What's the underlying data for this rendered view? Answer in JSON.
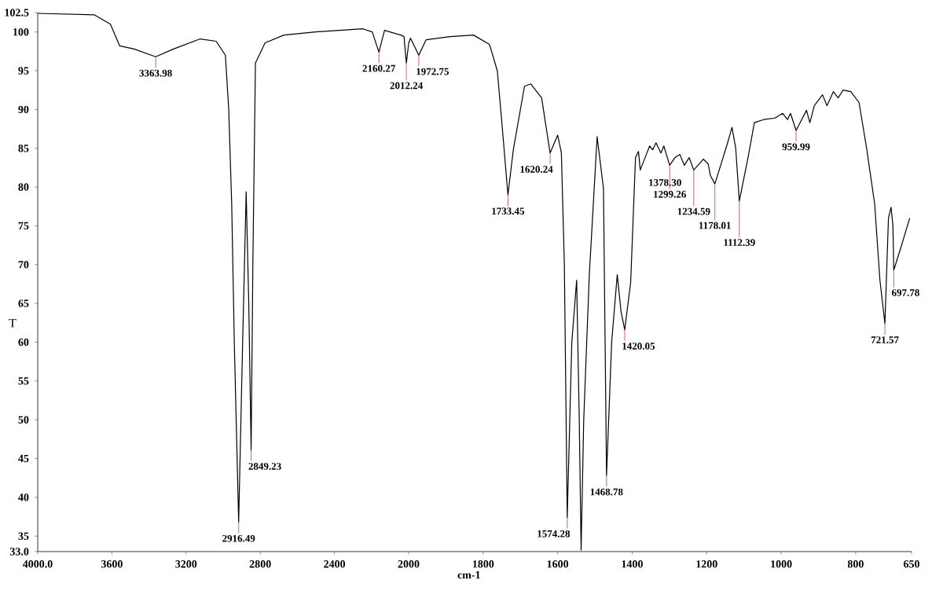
{
  "chart_data": [
    {
      "type": "line",
      "ylabel": "T",
      "xlim": [
        4000,
        2000
      ],
      "ylim": [
        33,
        102.5
      ],
      "xticks": [
        {
          "value": 4000,
          "label": "4000.0"
        },
        3600,
        3200,
        2800,
        2400,
        2000
      ],
      "yticks": [
        {
          "value": 33,
          "label": "33.0"
        },
        35,
        40,
        45,
        50,
        55,
        60,
        65,
        70,
        75,
        80,
        85,
        90,
        95,
        100,
        102.5
      ],
      "series": [
        {
          "color": "#000000",
          "x": [
            4000,
            3694,
            3608,
            3558,
            3480,
            3363.98,
            3268,
            3124,
            3038,
            2988,
            2970,
            2954,
            2940,
            2916.49,
            2895,
            2876,
            2862,
            2849.23,
            2840,
            2826,
            2774,
            2672,
            2502,
            2246,
            2196,
            2160.27,
            2130,
            2042,
            2025,
            2012.24,
            2000
          ],
          "values": [
            102.4,
            102.2,
            101,
            98.2,
            97.8,
            96.8,
            97.8,
            99.1,
            98.8,
            97,
            90,
            77.8,
            60,
            36.8,
            60,
            79.4,
            65,
            46.1,
            70,
            96,
            98.6,
            99.6,
            100,
            100.4,
            100,
            97.4,
            100.2,
            99.6,
            99.4,
            96,
            98.5
          ]
        }
      ],
      "annotations": [
        {
          "text": "3363.98",
          "x": 3363.98,
          "y": 96.8
        },
        {
          "text": "2160.27",
          "x": 2160.27,
          "y": 97.4
        },
        {
          "text": "2012.24",
          "x": 2012.24,
          "y": 96
        },
        {
          "text": "2849.23",
          "x": 2849.23,
          "y": 46.1
        },
        {
          "text": "2916.49",
          "x": 2916.49,
          "y": 36.8
        }
      ]
    },
    {
      "type": "line",
      "xlabel": "cm-1",
      "xlim": [
        2000,
        650
      ],
      "ylim": [
        33,
        102.5
      ],
      "tick_labels": "x",
      "xticks": [
        1800,
        1600,
        1400,
        1200,
        1000,
        800,
        650
      ],
      "series": [
        {
          "color": "#000000",
          "x": [
            2000,
            1995,
            1972.75,
            1953,
            1889,
            1826,
            1783,
            1762,
            1749,
            1733.45,
            1719,
            1689,
            1672,
            1643,
            1620.24,
            1600,
            1590,
            1582,
            1574.28,
            1562,
            1549,
            1542,
            1537,
            1530,
            1515,
            1494,
            1477,
            1468.78,
            1455,
            1440,
            1430,
            1420.05,
            1404,
            1391,
            1383,
            1378.3,
            1362,
            1353,
            1345,
            1336,
            1323,
            1315,
            1299.26,
            1285,
            1272,
            1260,
            1247,
            1234.59,
            1209,
            1196,
            1190,
            1178.01,
            1145,
            1132,
            1122,
            1112.39,
            1089,
            1072,
            1047,
            1017,
            996,
            983,
            975,
            959.99,
            932,
            923,
            911,
            889,
            877,
            860,
            847,
            834,
            813,
            791,
            770,
            749,
            735,
            721.57,
            712,
            705,
            700,
            697.78,
            680,
            655
          ],
          "values": [
            98.5,
            99.2,
            97,
            99,
            99.4,
            99.6,
            98.4,
            95,
            87.9,
            79,
            84.8,
            93,
            93.3,
            91.5,
            84.4,
            86.7,
            84.4,
            70,
            37.4,
            60,
            68,
            50,
            33.2,
            50,
            68.7,
            86.5,
            79.8,
            42.8,
            60,
            68.7,
            64,
            61.6,
            67.7,
            83.8,
            84.6,
            82.2,
            84.2,
            85.3,
            84.8,
            85.7,
            84.4,
            85.3,
            82.8,
            83.8,
            84.2,
            82.8,
            83.8,
            82.2,
            83.6,
            83,
            81.5,
            80.4,
            85.5,
            87.7,
            85,
            78.2,
            83.8,
            88.3,
            88.7,
            88.9,
            89.5,
            88.7,
            89.5,
            87.3,
            89.9,
            88.3,
            90.5,
            91.9,
            90.5,
            92.3,
            91.5,
            92.5,
            92.3,
            90.9,
            84.8,
            77.8,
            68,
            62.4,
            76,
            77.4,
            75,
            69.3,
            72,
            76
          ]
        }
      ],
      "annotations": [
        {
          "text": "1972.75",
          "x": 1972.75,
          "y": 97
        },
        {
          "text": "1733.45",
          "x": 1733.45,
          "y": 79
        },
        {
          "text": "1620.24",
          "x": 1620.24,
          "y": 84.4
        },
        {
          "text": "1378.30",
          "x": 1378.3,
          "y": 82.2
        },
        {
          "text": "1299.26",
          "x": 1299.26,
          "y": 82.8
        },
        {
          "text": "1234.59",
          "x": 1234.59,
          "y": 82.2
        },
        {
          "text": "1178.01",
          "x": 1178.01,
          "y": 80.4
        },
        {
          "text": "1112.39",
          "x": 1112.39,
          "y": 78.2
        },
        {
          "text": "959.99",
          "x": 959.99,
          "y": 87.3
        },
        {
          "text": "697.78",
          "x": 697.78,
          "y": 69.3
        },
        {
          "text": "721.57",
          "x": 721.57,
          "y": 62.4
        },
        {
          "text": "1420.05",
          "x": 1420.05,
          "y": 61.6
        },
        {
          "text": "1574.28",
          "x": 1574.28,
          "y": 37.4
        },
        {
          "text": "1468.78",
          "x": 1468.78,
          "y": 42.8
        }
      ]
    }
  ]
}
